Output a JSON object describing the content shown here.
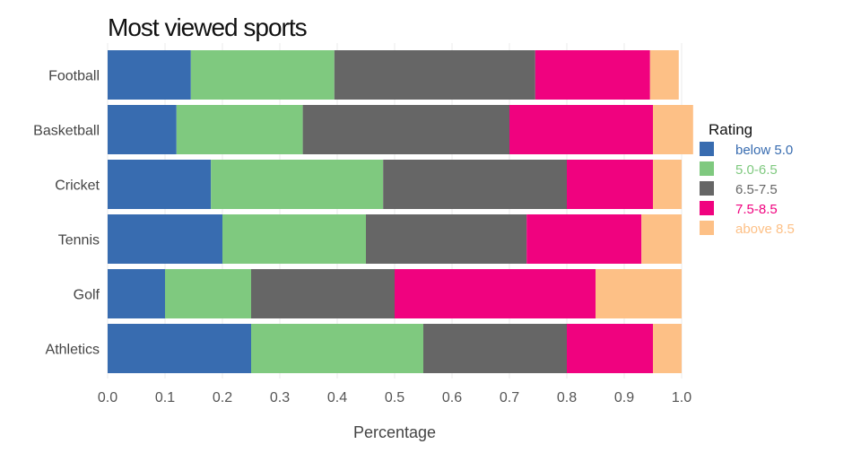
{
  "chart_data": {
    "type": "bar",
    "orientation": "horizontal",
    "stacked": true,
    "title": "Most viewed sports",
    "xlabel": "Percentage",
    "ylabel": "",
    "xlim": [
      0,
      1.0
    ],
    "xticks": [
      "0.0",
      "0.1",
      "0.2",
      "0.3",
      "0.4",
      "0.5",
      "0.6",
      "0.7",
      "0.8",
      "0.9",
      "1.0"
    ],
    "categories": [
      "Football",
      "Basketball",
      "Cricket",
      "Tennis",
      "Golf",
      "Athletics"
    ],
    "legend": {
      "title": "Rating",
      "position": "right"
    },
    "series": [
      {
        "name": "below 5.0",
        "color": "#386cb0",
        "values": [
          0.145,
          0.12,
          0.18,
          0.2,
          0.1,
          0.25
        ]
      },
      {
        "name": "5.0-6.5",
        "color": "#7fc97f",
        "values": [
          0.25,
          0.22,
          0.3,
          0.25,
          0.15,
          0.3
        ]
      },
      {
        "name": "6.5-7.5",
        "color": "#666666",
        "values": [
          0.35,
          0.36,
          0.32,
          0.28,
          0.25,
          0.25
        ]
      },
      {
        "name": "7.5-8.5",
        "color": "#f0027f",
        "values": [
          0.2,
          0.25,
          0.15,
          0.2,
          0.35,
          0.15
        ]
      },
      {
        "name": "above 8.5",
        "color": "#fdc086",
        "values": [
          0.05,
          0.07,
          0.05,
          0.07,
          0.15,
          0.05
        ]
      }
    ]
  }
}
